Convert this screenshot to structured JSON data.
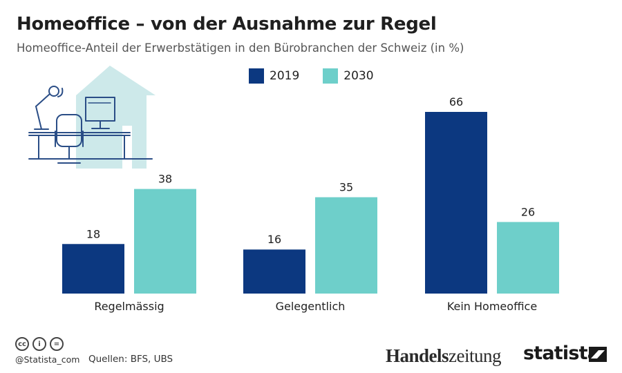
{
  "header": {
    "title": "Homeoffice – von der Ausnahme zur Regel",
    "subtitle": "Homeoffice-Anteil der Erwerbstätigen in den Bürobranchen der Schweiz (in %)"
  },
  "colors": {
    "series_2019": "#0c3880",
    "series_2030": "#6ecfca",
    "illustration_house": "#cde9ea",
    "illustration_line": "#2a4d86"
  },
  "chart_data": {
    "type": "bar",
    "title": "Homeoffice – von der Ausnahme zur Regel",
    "subtitle": "Homeoffice-Anteil der Erwerbstätigen in den Bürobranchen der Schweiz (in %)",
    "categories": [
      "Regelmässig",
      "Gelegentlich",
      "Kein Homeoffice"
    ],
    "series": [
      {
        "name": "2019",
        "values": [
          18,
          16,
          66
        ]
      },
      {
        "name": "2030",
        "values": [
          38,
          35,
          26
        ]
      }
    ],
    "xlabel": "",
    "ylabel": "",
    "ylim": [
      0,
      66
    ],
    "grid": false,
    "legend": "top-center"
  },
  "footer": {
    "handle": "@Statista_com",
    "source": "Quellen: BFS, UBS",
    "brand_1_bold": "Handels",
    "brand_1_rest": "zeitung",
    "brand_2": "statista",
    "cc_icons": [
      "cc",
      "i",
      "="
    ]
  }
}
